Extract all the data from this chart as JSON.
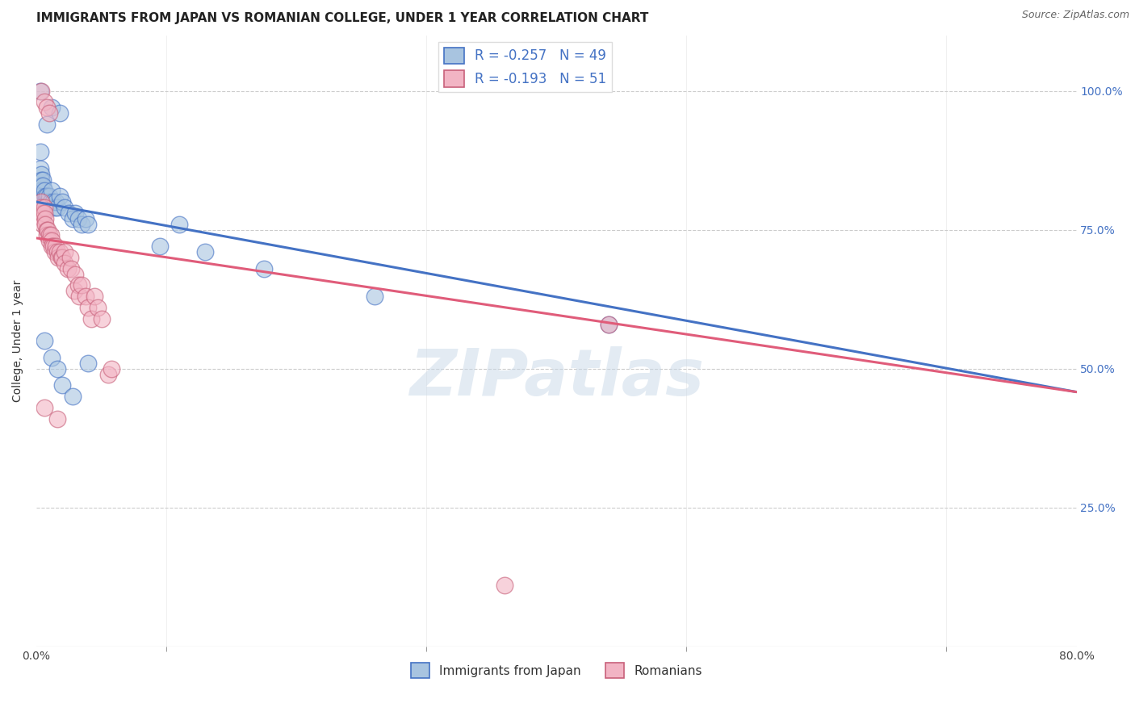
{
  "title": "IMMIGRANTS FROM JAPAN VS ROMANIAN COLLEGE, UNDER 1 YEAR CORRELATION CHART",
  "source": "Source: ZipAtlas.com",
  "ylabel": "College, Under 1 year",
  "right_yticks": [
    "100.0%",
    "75.0%",
    "50.0%",
    "25.0%"
  ],
  "right_ytick_vals": [
    1.0,
    0.75,
    0.5,
    0.25
  ],
  "legend_blue_label": "R = -0.257   N = 49",
  "legend_pink_label": "R = -0.193   N = 51",
  "blue_color": "#a8c4e0",
  "pink_color": "#f2b4c4",
  "trendline_blue": "#4472c4",
  "trendline_pink": "#e05c7a",
  "watermark": "ZIPatlas",
  "legend_x1_label": "Immigrants from Japan",
  "legend_x2_label": "Romanians",
  "blue_scatter": [
    [
      0.003,
      1.0
    ],
    [
      0.012,
      0.97
    ],
    [
      0.008,
      0.94
    ],
    [
      0.018,
      0.96
    ],
    [
      0.003,
      0.89
    ],
    [
      0.003,
      0.86
    ],
    [
      0.004,
      0.85
    ],
    [
      0.004,
      0.84
    ],
    [
      0.004,
      0.83
    ],
    [
      0.003,
      0.82
    ],
    [
      0.004,
      0.82
    ],
    [
      0.004,
      0.81
    ],
    [
      0.003,
      0.8
    ],
    [
      0.005,
      0.84
    ],
    [
      0.005,
      0.83
    ],
    [
      0.006,
      0.82
    ],
    [
      0.007,
      0.81
    ],
    [
      0.007,
      0.8
    ],
    [
      0.008,
      0.81
    ],
    [
      0.009,
      0.8
    ],
    [
      0.01,
      0.81
    ],
    [
      0.011,
      0.8
    ],
    [
      0.012,
      0.82
    ],
    [
      0.013,
      0.8
    ],
    [
      0.014,
      0.79
    ],
    [
      0.015,
      0.8
    ],
    [
      0.016,
      0.79
    ],
    [
      0.018,
      0.81
    ],
    [
      0.02,
      0.8
    ],
    [
      0.022,
      0.79
    ],
    [
      0.025,
      0.78
    ],
    [
      0.028,
      0.77
    ],
    [
      0.03,
      0.78
    ],
    [
      0.032,
      0.77
    ],
    [
      0.035,
      0.76
    ],
    [
      0.038,
      0.77
    ],
    [
      0.04,
      0.76
    ],
    [
      0.095,
      0.72
    ],
    [
      0.11,
      0.76
    ],
    [
      0.13,
      0.71
    ],
    [
      0.175,
      0.68
    ],
    [
      0.26,
      0.63
    ],
    [
      0.006,
      0.55
    ],
    [
      0.012,
      0.52
    ],
    [
      0.016,
      0.5
    ],
    [
      0.02,
      0.47
    ],
    [
      0.028,
      0.45
    ],
    [
      0.04,
      0.51
    ],
    [
      0.44,
      0.58
    ]
  ],
  "pink_scatter": [
    [
      0.004,
      1.0
    ],
    [
      0.006,
      0.98
    ],
    [
      0.008,
      0.97
    ],
    [
      0.01,
      0.96
    ],
    [
      0.004,
      0.8
    ],
    [
      0.004,
      0.79
    ],
    [
      0.005,
      0.78
    ],
    [
      0.005,
      0.77
    ],
    [
      0.005,
      0.76
    ],
    [
      0.006,
      0.79
    ],
    [
      0.006,
      0.78
    ],
    [
      0.007,
      0.77
    ],
    [
      0.007,
      0.76
    ],
    [
      0.008,
      0.75
    ],
    [
      0.008,
      0.74
    ],
    [
      0.009,
      0.75
    ],
    [
      0.01,
      0.74
    ],
    [
      0.01,
      0.73
    ],
    [
      0.011,
      0.74
    ],
    [
      0.012,
      0.73
    ],
    [
      0.012,
      0.72
    ],
    [
      0.013,
      0.72
    ],
    [
      0.014,
      0.71
    ],
    [
      0.015,
      0.72
    ],
    [
      0.016,
      0.71
    ],
    [
      0.017,
      0.7
    ],
    [
      0.018,
      0.71
    ],
    [
      0.019,
      0.7
    ],
    [
      0.02,
      0.7
    ],
    [
      0.022,
      0.71
    ],
    [
      0.022,
      0.69
    ],
    [
      0.024,
      0.68
    ],
    [
      0.026,
      0.7
    ],
    [
      0.027,
      0.68
    ],
    [
      0.029,
      0.64
    ],
    [
      0.03,
      0.67
    ],
    [
      0.032,
      0.65
    ],
    [
      0.033,
      0.63
    ],
    [
      0.035,
      0.65
    ],
    [
      0.038,
      0.63
    ],
    [
      0.04,
      0.61
    ],
    [
      0.042,
      0.59
    ],
    [
      0.045,
      0.63
    ],
    [
      0.047,
      0.61
    ],
    [
      0.05,
      0.59
    ],
    [
      0.055,
      0.49
    ],
    [
      0.058,
      0.5
    ],
    [
      0.006,
      0.43
    ],
    [
      0.016,
      0.41
    ],
    [
      0.36,
      0.11
    ],
    [
      0.44,
      0.58
    ]
  ],
  "blue_trend_x": [
    0.0,
    0.8
  ],
  "blue_trend_y": [
    0.8,
    0.458
  ],
  "pink_trend_x": [
    0.0,
    0.8
  ],
  "pink_trend_y": [
    0.735,
    0.458
  ],
  "xlim": [
    0.0,
    0.8
  ],
  "ylim": [
    0.0,
    1.1
  ],
  "grid_color": "#cccccc",
  "background_color": "#ffffff",
  "title_fontsize": 11,
  "axis_fontsize": 9,
  "xtick_positions": [
    0.0,
    0.2,
    0.4,
    0.6,
    0.8
  ],
  "xtick_minor_positions": [
    0.1,
    0.3,
    0.5,
    0.7
  ]
}
